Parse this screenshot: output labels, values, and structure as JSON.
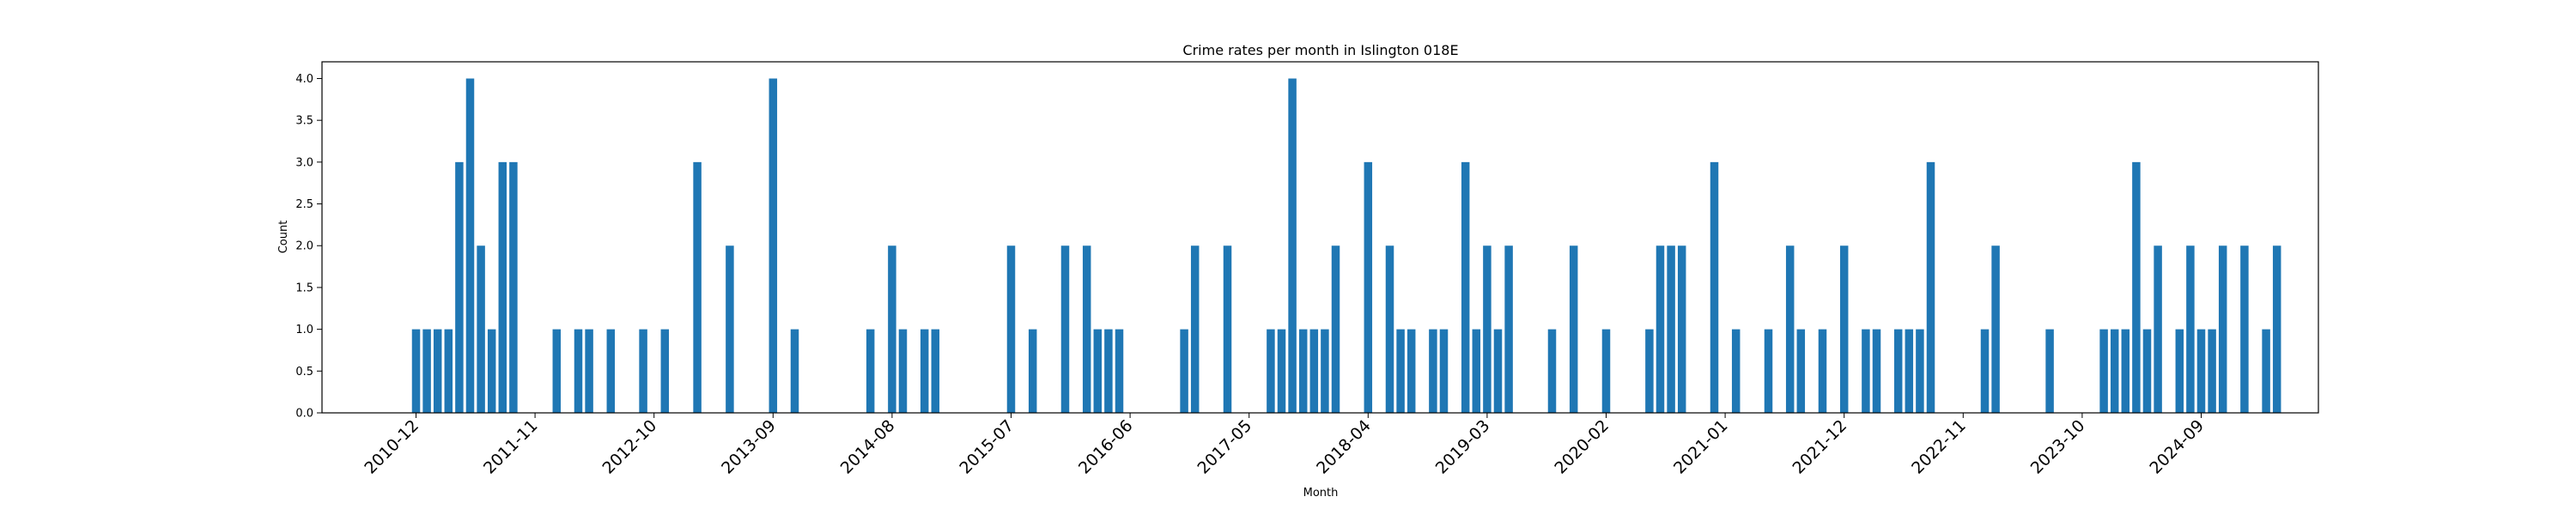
{
  "chart_data": {
    "type": "bar",
    "title": "Crime rates per month in Islington 018E",
    "xlabel": "Month",
    "ylabel": "Count",
    "ylim": [
      0,
      4.2
    ],
    "yticks": [
      0.0,
      0.5,
      1.0,
      1.5,
      2.0,
      2.5,
      3.0,
      3.5,
      4.0
    ],
    "ytick_labels": [
      "0.0",
      "0.5",
      "1.0",
      "1.5",
      "2.0",
      "2.5",
      "3.0",
      "3.5",
      "4.0"
    ],
    "xticks": [
      "2010-12",
      "2011-11",
      "2012-10",
      "2013-09",
      "2014-08",
      "2015-07",
      "2016-06",
      "2017-05",
      "2018-04",
      "2019-03",
      "2020-02",
      "2021-01",
      "2021-12",
      "2022-11",
      "2023-10",
      "2024-09"
    ],
    "color": "#1f77b4",
    "grid": false,
    "series": [
      {
        "x": [
          "2010-12",
          "2011-01",
          "2011-02",
          "2011-03",
          "2011-04",
          "2011-05",
          "2011-06",
          "2011-07",
          "2011-08",
          "2011-09",
          "2012-01",
          "2012-03",
          "2012-04",
          "2012-06",
          "2012-09",
          "2012-11",
          "2013-02",
          "2013-05",
          "2013-09",
          "2013-11",
          "2014-06",
          "2014-08",
          "2014-09",
          "2014-11",
          "2014-12",
          "2015-07",
          "2015-09",
          "2015-12",
          "2016-02",
          "2016-03",
          "2016-04",
          "2016-05",
          "2016-11",
          "2016-12",
          "2017-03",
          "2017-07",
          "2017-08",
          "2017-09",
          "2017-10",
          "2017-11",
          "2017-12",
          "2018-01",
          "2018-04",
          "2018-06",
          "2018-07",
          "2018-08",
          "2018-10",
          "2018-11",
          "2019-01",
          "2019-02",
          "2019-03",
          "2019-04",
          "2019-05",
          "2019-09",
          "2019-11",
          "2020-02",
          "2020-06",
          "2020-07",
          "2020-08",
          "2020-09",
          "2020-12",
          "2021-02",
          "2021-05",
          "2021-07",
          "2021-08",
          "2021-10",
          "2021-12",
          "2022-02",
          "2022-03",
          "2022-05",
          "2022-06",
          "2022-07",
          "2022-08",
          "2023-01",
          "2023-02",
          "2023-07",
          "2023-12",
          "2024-01",
          "2024-02",
          "2024-03",
          "2024-04",
          "2024-05",
          "2024-07",
          "2024-08",
          "2024-09",
          "2024-10",
          "2024-11",
          "2025-01",
          "2025-03",
          "2025-04"
        ],
        "values": [
          1,
          1,
          1,
          1,
          3,
          4,
          2,
          1,
          3,
          3,
          1,
          1,
          1,
          1,
          1,
          1,
          3,
          2,
          4,
          1,
          1,
          2,
          1,
          1,
          1,
          2,
          1,
          2,
          2,
          1,
          1,
          1,
          1,
          2,
          2,
          1,
          1,
          4,
          1,
          1,
          1,
          2,
          3,
          2,
          1,
          1,
          1,
          1,
          3,
          1,
          2,
          1,
          2,
          1,
          2,
          1,
          1,
          2,
          2,
          2,
          3,
          1,
          1,
          2,
          1,
          1,
          2,
          1,
          1,
          1,
          1,
          1,
          3,
          1,
          2,
          1,
          1,
          1,
          1,
          3,
          1,
          2,
          1,
          2,
          1,
          1,
          2,
          2,
          1,
          2
        ]
      }
    ]
  }
}
